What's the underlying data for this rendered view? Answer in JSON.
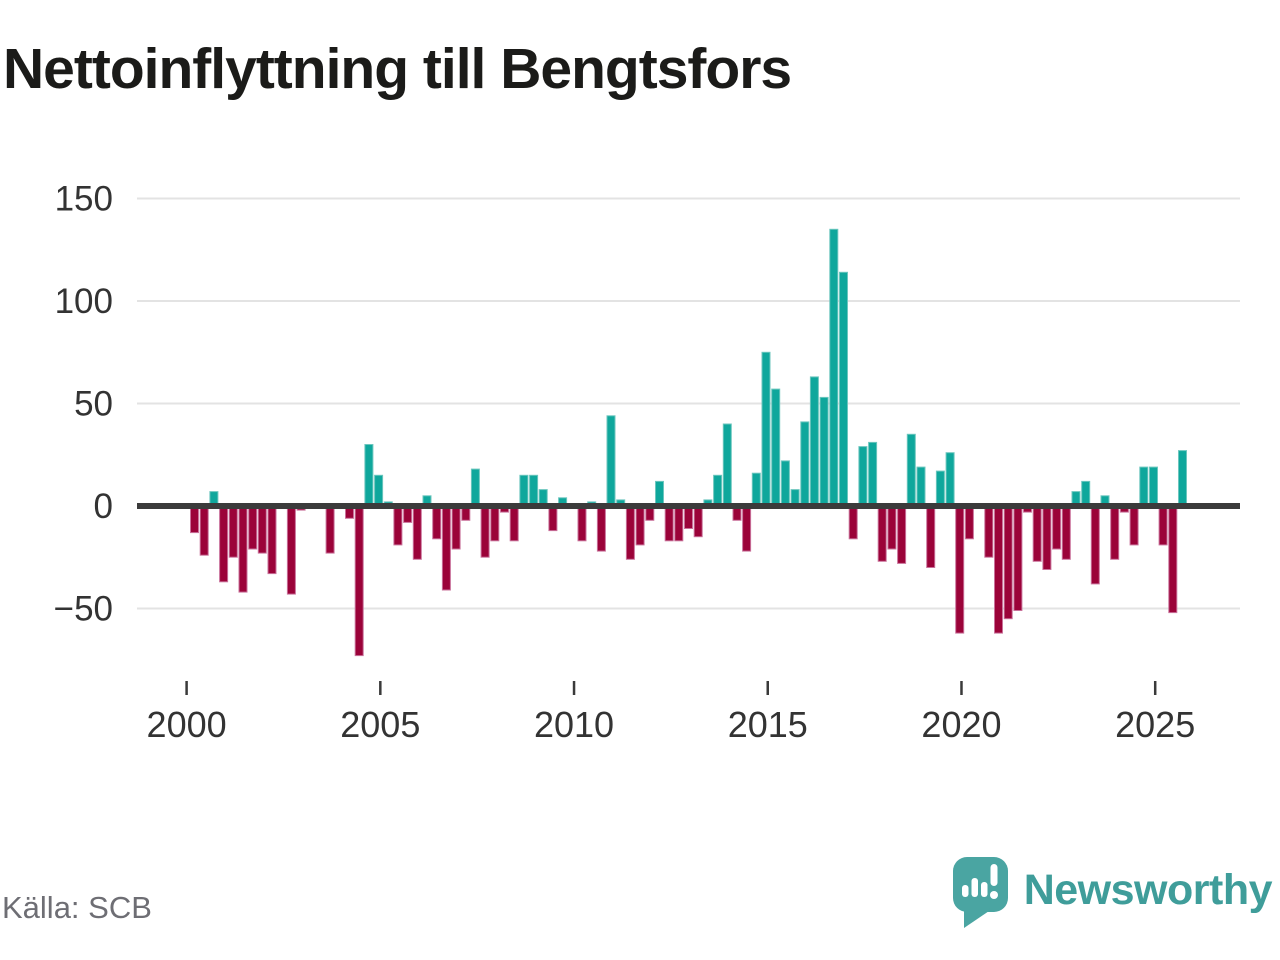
{
  "title": "Nettoinflyttning till Bengtsfors",
  "source": "Källa: SCB",
  "brand": {
    "name": "Newsworthy",
    "text_color": "#3f9d9a",
    "bubble_color": "#4aa5a2"
  },
  "colors": {
    "positive_bar": "#0fa79c",
    "negative_bar": "#9b0339",
    "zero_line": "#3b3b3b",
    "gridline": "#e3e3e3",
    "axis_text": "#333333"
  },
  "chart_data": {
    "type": "bar",
    "title": "Nettoinflyttning till Bengtsfors",
    "xlabel": "",
    "ylabel": "",
    "frequency": "quarterly",
    "start": "2000-Q1",
    "end": "2025-Q3",
    "ylim": [
      -78,
      155
    ],
    "yticks": [
      150,
      100,
      50,
      0,
      -50
    ],
    "ytick_labels": [
      "150",
      "100",
      "50",
      "0",
      "−50"
    ],
    "xticks": [
      2000,
      2005,
      2010,
      2015,
      2020,
      2025
    ],
    "xtick_labels": [
      "2000",
      "2005",
      "2010",
      "2015",
      "2020",
      "2025"
    ],
    "grid": true,
    "legend": false,
    "values": [
      -13,
      -24,
      7,
      -37,
      -25,
      -42,
      -21,
      -23,
      -33,
      0,
      -43,
      -2,
      0,
      0,
      -23,
      0,
      -6,
      -73,
      30,
      15,
      2,
      -19,
      -8,
      -26,
      5,
      -16,
      -41,
      -21,
      -7,
      18,
      -25,
      -17,
      -3,
      -17,
      15,
      15,
      8,
      -12,
      4,
      0,
      -17,
      2,
      -22,
      44,
      3,
      -26,
      -19,
      -7,
      12,
      -17,
      -17,
      -11,
      -15,
      3,
      15,
      40,
      -7,
      -22,
      16,
      75,
      57,
      22,
      8,
      41,
      63,
      53,
      135,
      114,
      -16,
      29,
      31,
      -27,
      -21,
      -28,
      35,
      19,
      -30,
      17,
      26,
      -62,
      -16,
      0,
      -25,
      -62,
      -55,
      -51,
      -3,
      -27,
      -31,
      -21,
      -26,
      7,
      12,
      -38,
      5,
      -26,
      -3,
      -19,
      19,
      19,
      -19,
      -52,
      27
    ]
  }
}
